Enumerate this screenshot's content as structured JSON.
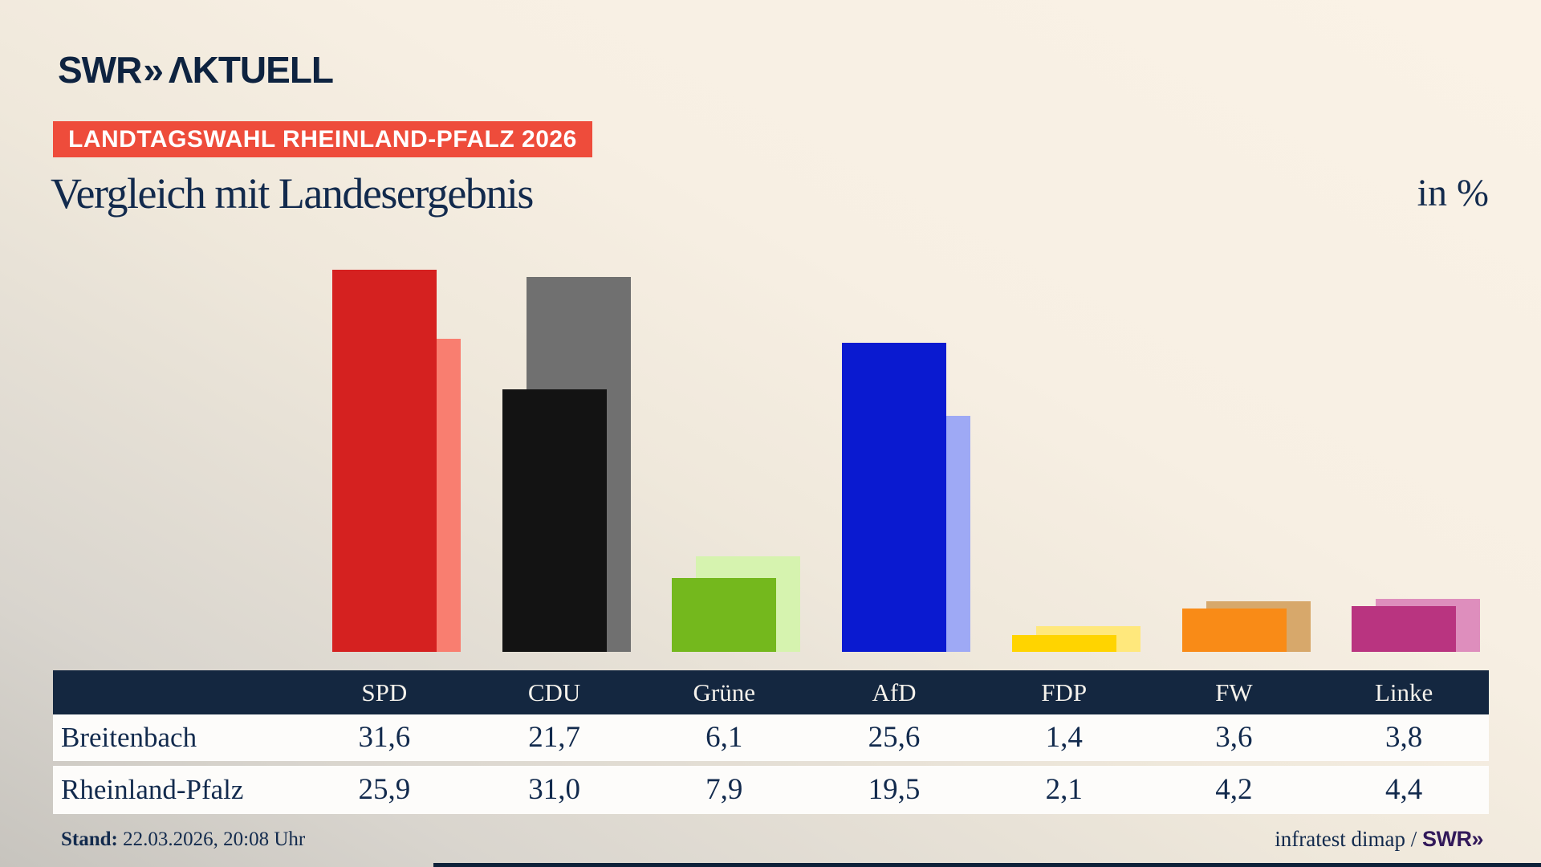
{
  "header": {
    "logo_swr": "SWR",
    "logo_chevrons": "»",
    "logo_aktuell": "ΛKTUELL",
    "banner": "LANDTAGSWAHL RHEINLAND-PFALZ 2026",
    "title": "Vergleich mit Landesergebnis",
    "unit_label": "in %"
  },
  "chart_data": {
    "type": "bar",
    "categories": [
      "SPD",
      "CDU",
      "Grüne",
      "AfD",
      "FDP",
      "FW",
      "Linke"
    ],
    "series": [
      {
        "name": "Breitenbach",
        "values": [
          31.6,
          21.7,
          6.1,
          25.6,
          1.4,
          3.6,
          3.8
        ]
      },
      {
        "name": "Rheinland-Pfalz",
        "values": [
          25.9,
          31.0,
          7.9,
          19.5,
          2.1,
          4.2,
          4.4
        ]
      }
    ],
    "series_colors": {
      "main": [
        "#d52120",
        "#131313",
        "#74b81d",
        "#0a1ad0",
        "#ffd400",
        "#f98b17",
        "#b93480"
      ],
      "comparison": [
        "#f97e70",
        "#707070",
        "#d6f3af",
        "#9ea9f5",
        "#ffe87c",
        "#d7a86b",
        "#de8ebd"
      ]
    },
    "title": "Vergleich mit Landesergebnis",
    "ylabel": "in %",
    "ylim": [
      0,
      33
    ],
    "grid": false,
    "legend": "none (values shown in table below)"
  },
  "table": {
    "columns": [
      "SPD",
      "CDU",
      "Grüne",
      "AfD",
      "FDP",
      "FW",
      "Linke"
    ],
    "rows": [
      {
        "label": "Breitenbach",
        "values": [
          "31,6",
          "21,7",
          "6,1",
          "25,6",
          "1,4",
          "3,6",
          "3,8"
        ]
      },
      {
        "label": "Rheinland-Pfalz",
        "values": [
          "25,9",
          "31,0",
          "7,9",
          "19,5",
          "2,1",
          "4,2",
          "4,4"
        ]
      }
    ]
  },
  "footer": {
    "stand_label": "Stand:",
    "stand_value": " 22.03.2026, 20:08 Uhr",
    "source_text": "infratest dimap / ",
    "source_logo_swr": "SWR",
    "source_logo_chevrons": "»"
  }
}
